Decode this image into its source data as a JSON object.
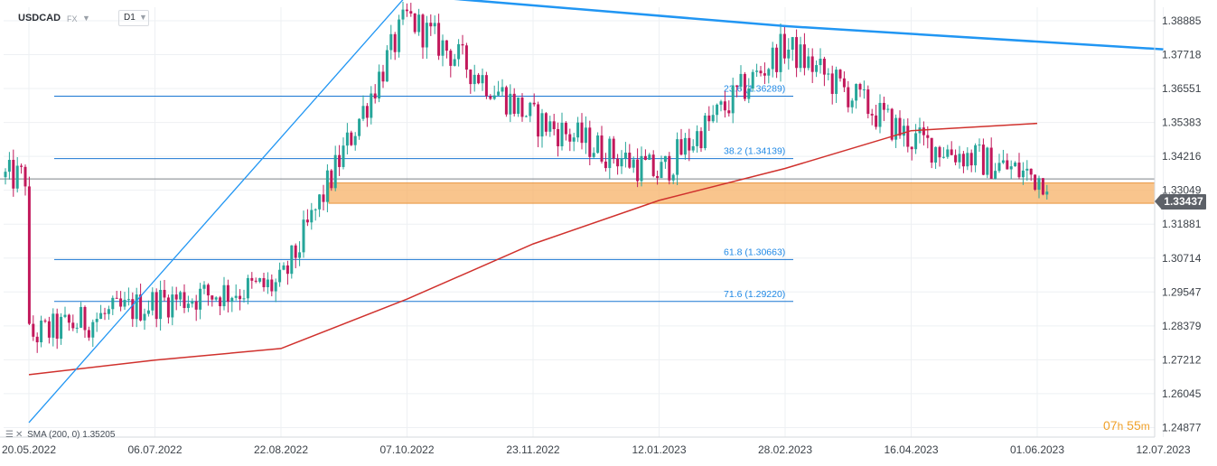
{
  "header": {
    "symbol": "USDCAD",
    "market": "FX",
    "timeframe": "D1"
  },
  "indicator_legend": {
    "label": "SMA (200, 0)",
    "value": "1.35205"
  },
  "current_price_label": "1.33437",
  "countdown": {
    "hours": "07",
    "hours_unit": "h",
    "minutes": "55",
    "minutes_unit": "m"
  },
  "colors": {
    "up_candle": "#26a69a",
    "down_candle": "#c2185b",
    "sma": "#d0312d",
    "trendline": "#2196f3",
    "fib_line": "#1976d2",
    "support_zone": "#f7b267",
    "grid": "#eef0f3"
  },
  "chart_data": {
    "type": "candlestick",
    "symbol": "USDCAD",
    "timeframe": "D1",
    "x_labels": [
      "20.05.2022",
      "06.07.2022",
      "22.08.2022",
      "07.10.2022",
      "23.11.2022",
      "12.01.2023",
      "28.02.2023",
      "16.04.2023",
      "01.06.2023",
      "12.07.2023"
    ],
    "y_ticks": [
      1.38885,
      1.37718,
      1.36551,
      1.35383,
      1.34216,
      1.33049,
      1.31881,
      1.30714,
      1.29547,
      1.28379,
      1.27212,
      1.26045,
      1.24877
    ],
    "ylim": [
      1.2455,
      1.3935
    ],
    "current_price": 1.33437,
    "grid": true,
    "fibonacci_levels": [
      {
        "level": 23.6,
        "price": 1.36289,
        "label": "23.6 (1.36289)"
      },
      {
        "level": 38.2,
        "price": 1.34139,
        "label": "38.2 (1.34139)"
      },
      {
        "level": 61.8,
        "price": 1.30663,
        "label": "61.8 (1.30663)"
      },
      {
        "level": 71.6,
        "price": 1.2922,
        "label": "71.6 (1.29220)"
      }
    ],
    "support_zone": [
      1.326,
      1.333
    ],
    "trendlines": [
      {
        "name": "descending resistance",
        "points": [
          [
            "07.10.2022",
            1.3977
          ],
          [
            "28.02.2023",
            1.387
          ],
          [
            "12.07.2023",
            1.379
          ]
        ]
      },
      {
        "name": "rally line",
        "points": [
          [
            "20.05.2022",
            1.2505
          ],
          [
            "07.10.2022",
            1.3977
          ]
        ]
      }
    ],
    "sma_200": [
      [
        "20.05.2022",
        1.267
      ],
      [
        "06.07.2022",
        1.272
      ],
      [
        "22.08.2022",
        1.276
      ],
      [
        "07.10.2022",
        1.293
      ],
      [
        "23.11.2022",
        1.312
      ],
      [
        "12.01.2023",
        1.327
      ],
      [
        "28.02.2023",
        1.338
      ],
      [
        "16.04.2023",
        1.351
      ],
      [
        "01.06.2023",
        1.3535
      ]
    ],
    "price_path": [
      [
        "20.05.2022",
        1.28
      ],
      [
        "06.07.2022",
        1.292
      ],
      [
        "22.08.2022",
        1.298
      ],
      [
        "07.10.2022",
        1.39
      ],
      [
        "23.11.2022",
        1.355
      ],
      [
        "12.01.2023",
        1.336
      ],
      [
        "28.02.2023",
        1.38
      ],
      [
        "16.04.2023",
        1.348
      ],
      [
        "01.06.2023",
        1.335
      ]
    ]
  }
}
